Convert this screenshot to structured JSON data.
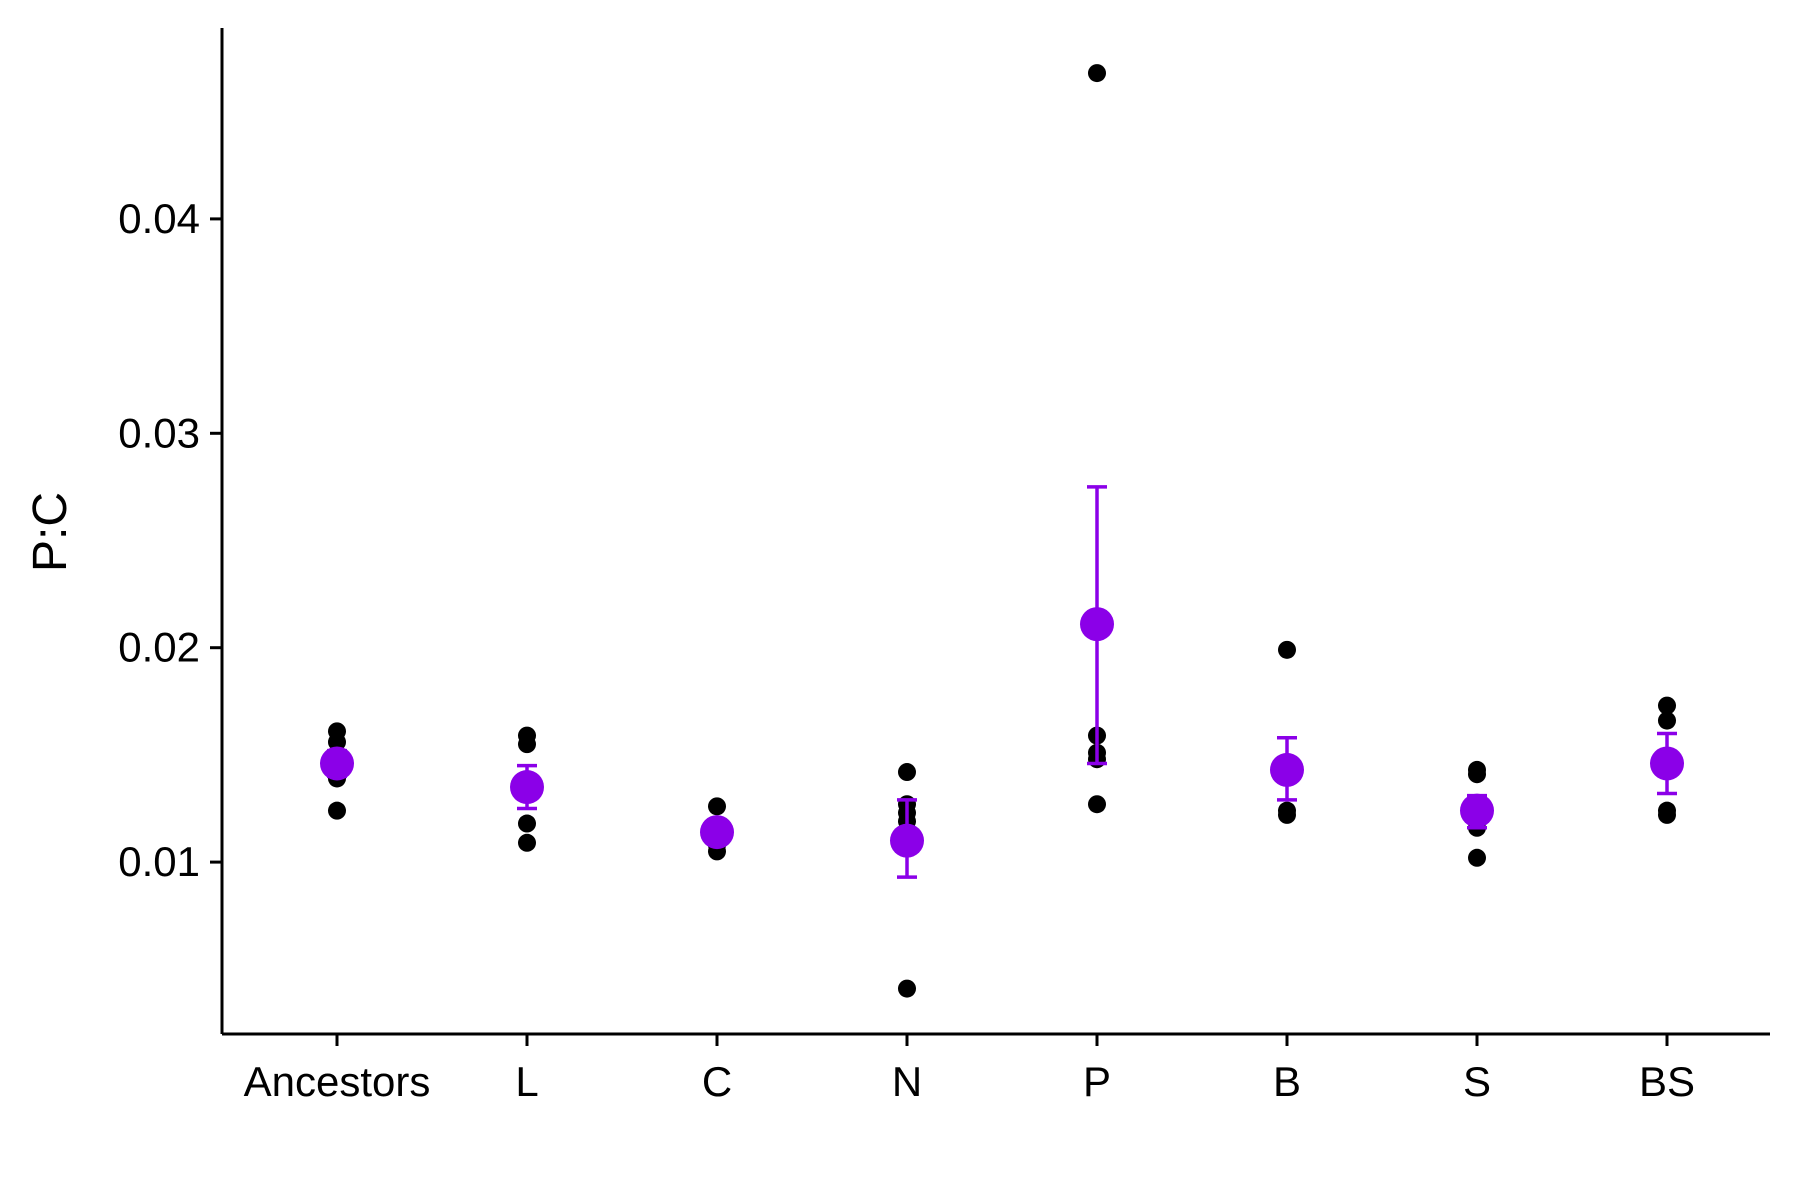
{
  "chart_data": {
    "type": "scatter",
    "title": "",
    "xlabel": "",
    "ylabel": "P:C",
    "categories": [
      "Ancestors",
      "L",
      "C",
      "N",
      "P",
      "B",
      "S",
      "BS"
    ],
    "yticks": [
      "0.01",
      "0.02",
      "0.03",
      "0.04"
    ],
    "ylim": [
      0.002,
      0.049
    ],
    "grid": false,
    "legend": "none",
    "colors": {
      "points": "#000000",
      "mean": "#8b00e8"
    },
    "series": [
      {
        "kind": "replicates",
        "points": [
          {
            "x": "Ancestors",
            "y": [
              0.0161,
              0.0156,
              0.0149,
              0.0145,
              0.0139,
              0.0124
            ]
          },
          {
            "x": "L",
            "y": [
              0.0159,
              0.0155,
              0.0118,
              0.0109
            ]
          },
          {
            "x": "C",
            "y": [
              0.0126,
              0.0115,
              0.0108,
              0.0105
            ]
          },
          {
            "x": "N",
            "y": [
              0.0142,
              0.0127,
              0.0123,
              0.0119,
              0.0114,
              0.0041
            ]
          },
          {
            "x": "P",
            "y": [
              0.0468,
              0.0159,
              0.0151,
              0.0148,
              0.0127
            ]
          },
          {
            "x": "B",
            "y": [
              0.0199,
              0.0145,
              0.0124,
              0.0122
            ]
          },
          {
            "x": "S",
            "y": [
              0.0143,
              0.0141,
              0.0125,
              0.0116,
              0.0102
            ]
          },
          {
            "x": "BS",
            "y": [
              0.0173,
              0.0166,
              0.0124,
              0.0122
            ]
          }
        ]
      },
      {
        "kind": "mean_se",
        "points": [
          {
            "x": "Ancestors",
            "mean": 0.0146,
            "lower": 0.014,
            "upper": 0.0152
          },
          {
            "x": "L",
            "mean": 0.0135,
            "lower": 0.0125,
            "upper": 0.0145
          },
          {
            "x": "C",
            "mean": 0.0114,
            "lower": 0.0109,
            "upper": 0.0119
          },
          {
            "x": "N",
            "mean": 0.011,
            "lower": 0.0093,
            "upper": 0.0129
          },
          {
            "x": "P",
            "mean": 0.0211,
            "lower": 0.0146,
            "upper": 0.0275
          },
          {
            "x": "B",
            "mean": 0.0143,
            "lower": 0.0129,
            "upper": 0.0158
          },
          {
            "x": "S",
            "mean": 0.0124,
            "lower": 0.0116,
            "upper": 0.0131
          },
          {
            "x": "BS",
            "mean": 0.0146,
            "lower": 0.0132,
            "upper": 0.016
          }
        ]
      }
    ]
  }
}
